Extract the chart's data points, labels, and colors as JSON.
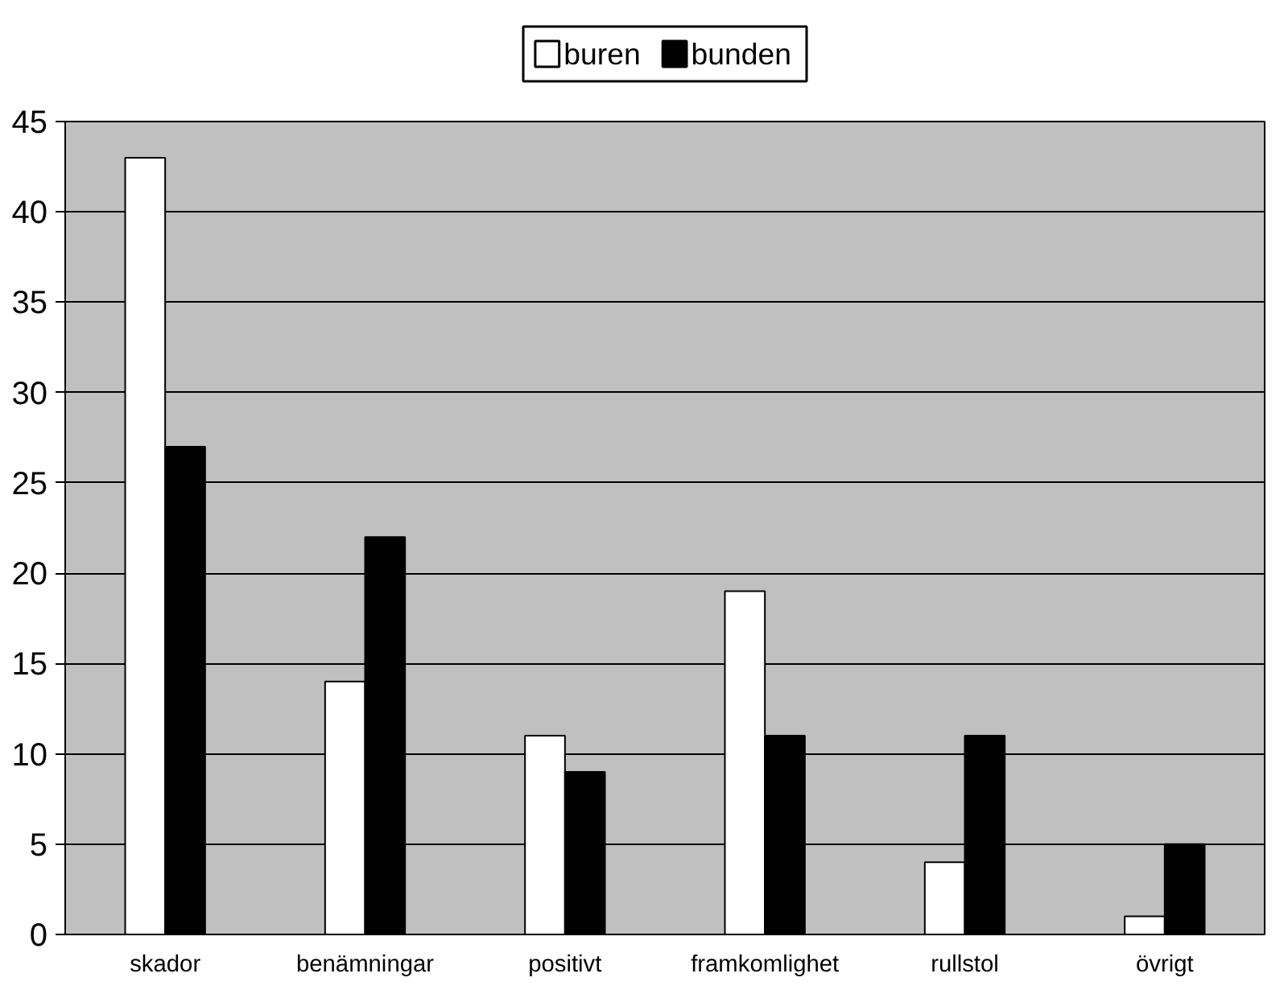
{
  "chart_data": {
    "type": "bar",
    "categories": [
      "skador",
      "benämningar",
      "positivt",
      "framkomlighet",
      "rullstol",
      "övrigt"
    ],
    "series": [
      {
        "name": "buren",
        "color": "#ffffff",
        "values": [
          43,
          14,
          11,
          19,
          4,
          1
        ]
      },
      {
        "name": "bunden",
        "color": "#000000",
        "values": [
          27,
          22,
          9,
          11,
          11,
          5
        ]
      }
    ],
    "ylim": [
      0,
      45
    ],
    "yticks": [
      0,
      5,
      10,
      15,
      20,
      25,
      30,
      35,
      40,
      45
    ],
    "grid": "y",
    "legend": "top"
  }
}
